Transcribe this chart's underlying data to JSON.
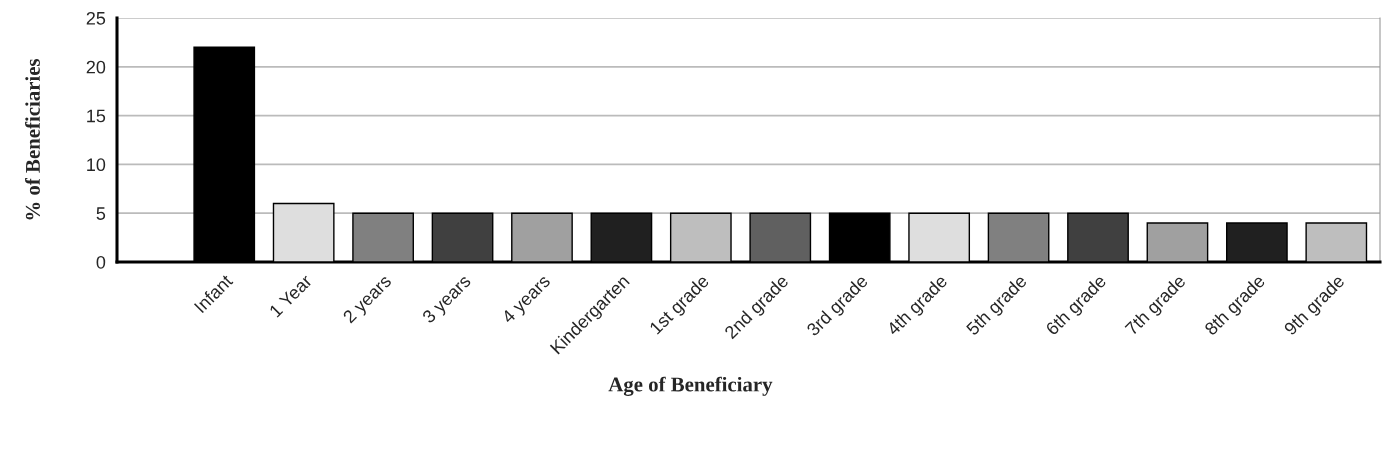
{
  "chart_data": {
    "type": "bar",
    "xlabel": "Age of Beneficiary",
    "ylabel": "% of Beneficiaries",
    "categories": [
      "Infant",
      "1 Year",
      "2 years",
      "3 years",
      "4 years",
      "Kindergarten",
      "1st grade",
      "2nd grade",
      "3rd grade",
      "4th grade",
      "5th grade",
      "6th grade",
      "7th grade",
      "8th grade",
      "9th grade"
    ],
    "values": [
      22,
      6,
      5,
      5,
      5,
      5,
      5,
      5,
      5,
      5,
      5,
      5,
      4,
      4,
      4
    ],
    "colors": [
      "#000000",
      "#dedede",
      "#808080",
      "#404040",
      "#a0a0a0",
      "#202020",
      "#bebebe",
      "#606060",
      "#000000",
      "#dedede",
      "#808080",
      "#404040",
      "#a0a0a0",
      "#202020",
      "#bebebe"
    ],
    "ylim": [
      0,
      25
    ],
    "yticks": [
      0,
      5,
      10,
      15,
      20,
      25
    ],
    "grid": "y"
  }
}
